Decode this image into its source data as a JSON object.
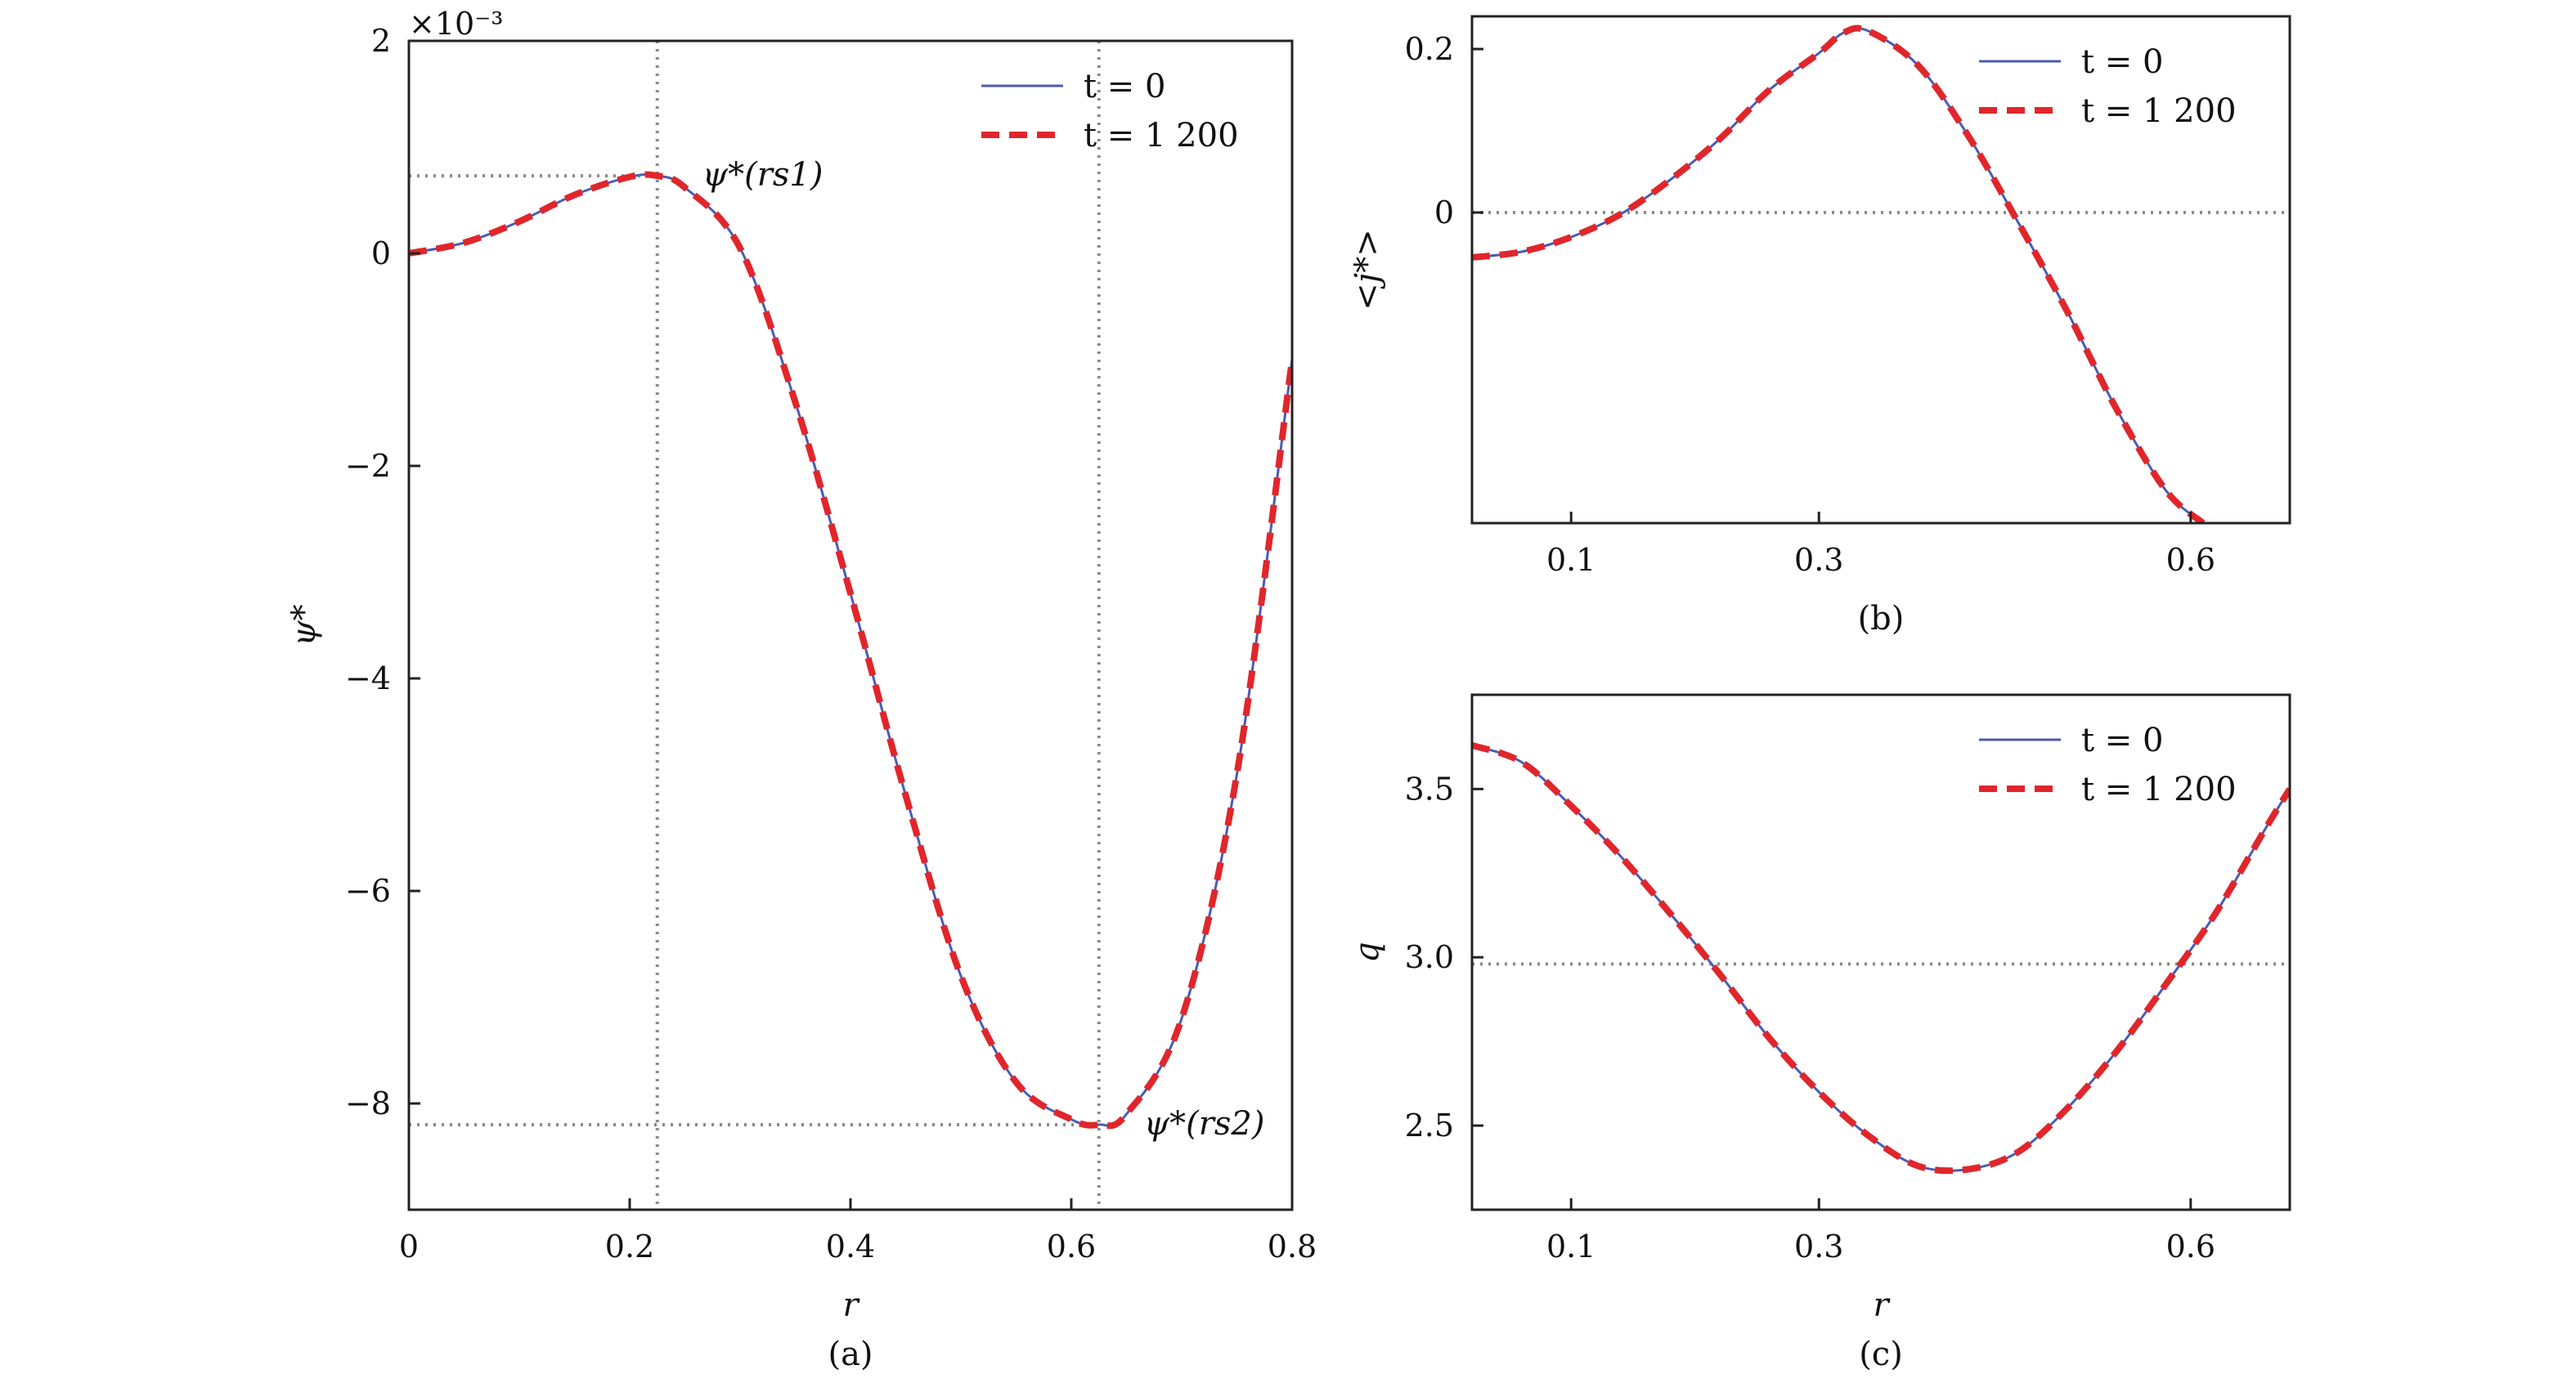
{
  "figure": {
    "panels": [
      "a",
      "b",
      "c"
    ]
  },
  "chart_data": [
    {
      "type": "line",
      "id": "a",
      "panel_label": "(a)",
      "xlabel": "r",
      "ylabel": "ψ*",
      "y_multiplier": "×10⁻³",
      "xlim": [
        0,
        0.8
      ],
      "ylim": [
        -9,
        2
      ],
      "xticks": [
        0,
        0.2,
        0.4,
        0.6,
        0.8
      ],
      "xtick_labels": [
        "0",
        "0.2",
        "0.4",
        "0.6",
        "0.8"
      ],
      "yticks": [
        2,
        0,
        -2,
        -4,
        -6,
        -8
      ],
      "ytick_labels": [
        "2",
        "0",
        "−2",
        "−4",
        "−6",
        "−8"
      ],
      "legend": {
        "placement": "top-right"
      },
      "series": [
        {
          "name": "t = 0",
          "style": "solid",
          "color": "#4b5cb3",
          "x": [
            0,
            0.05,
            0.1,
            0.15,
            0.2,
            0.225,
            0.25,
            0.3,
            0.35,
            0.4,
            0.45,
            0.5,
            0.55,
            0.6,
            0.625,
            0.65,
            0.7,
            0.75,
            0.8
          ],
          "y": [
            0,
            0.1,
            0.3,
            0.55,
            0.72,
            0.73,
            0.62,
            0.05,
            -1.4,
            -3.2,
            -5.1,
            -6.8,
            -7.8,
            -8.15,
            -8.2,
            -8.1,
            -7.2,
            -4.9,
            -1.0
          ]
        },
        {
          "name": "t = 1 200",
          "style": "dashed",
          "color": "#e0262b",
          "x": [
            0,
            0.05,
            0.1,
            0.15,
            0.2,
            0.225,
            0.25,
            0.3,
            0.35,
            0.4,
            0.45,
            0.5,
            0.55,
            0.6,
            0.625,
            0.65,
            0.7,
            0.75,
            0.8
          ],
          "y": [
            0,
            0.1,
            0.3,
            0.55,
            0.72,
            0.73,
            0.62,
            0.05,
            -1.4,
            -3.2,
            -5.1,
            -6.8,
            -7.8,
            -8.15,
            -8.2,
            -8.1,
            -7.2,
            -4.9,
            -1.0
          ]
        }
      ],
      "reference_lines": {
        "vertical_x": [
          0.225,
          0.625
        ],
        "horizontal_y": [
          0.73,
          -8.2
        ]
      },
      "annotations": [
        {
          "text": "ψ*(rs1)",
          "x": 0.225,
          "y": 0.73
        },
        {
          "text": "ψ*(rs2)",
          "x": 0.625,
          "y": -8.2
        }
      ]
    },
    {
      "type": "line",
      "id": "b",
      "panel_label": "(b)",
      "xlabel": "",
      "ylabel": "<j*>",
      "xlim": [
        0.02,
        0.68
      ],
      "ylim": [
        -0.38,
        0.24
      ],
      "xticks": [
        0.1,
        0.3,
        0.6
      ],
      "xtick_labels": [
        "0.1",
        "0.3",
        "0.6"
      ],
      "yticks": [
        0.2,
        0
      ],
      "ytick_labels": [
        "0.2",
        "0"
      ],
      "legend": {
        "placement": "top-right"
      },
      "series": [
        {
          "name": "t = 0",
          "style": "solid",
          "color": "#4b5cb3",
          "x": [
            0.02,
            0.06,
            0.1,
            0.14,
            0.18,
            0.22,
            0.26,
            0.3,
            0.32,
            0.34,
            0.38,
            0.42,
            0.46,
            0.5,
            0.54,
            0.58,
            0.61
          ],
          "y": [
            -0.055,
            -0.048,
            -0.03,
            -0.002,
            0.04,
            0.09,
            0.15,
            0.195,
            0.22,
            0.222,
            0.18,
            0.095,
            -0.01,
            -0.12,
            -0.24,
            -0.34,
            -0.38
          ]
        },
        {
          "name": "t = 1 200",
          "style": "dashed",
          "color": "#e0262b",
          "x": [
            0.02,
            0.06,
            0.1,
            0.14,
            0.18,
            0.22,
            0.26,
            0.3,
            0.32,
            0.34,
            0.38,
            0.42,
            0.46,
            0.5,
            0.54,
            0.58,
            0.61
          ],
          "y": [
            -0.055,
            -0.048,
            -0.03,
            -0.002,
            0.04,
            0.09,
            0.15,
            0.195,
            0.22,
            0.222,
            0.18,
            0.095,
            -0.01,
            -0.12,
            -0.24,
            -0.34,
            -0.38
          ]
        }
      ],
      "reference_lines": {
        "horizontal_y": [
          0
        ]
      }
    },
    {
      "type": "line",
      "id": "c",
      "panel_label": "(c)",
      "xlabel": "r",
      "ylabel": "q",
      "xlim": [
        0.02,
        0.68
      ],
      "ylim": [
        2.25,
        3.78
      ],
      "xticks": [
        0.1,
        0.3,
        0.6
      ],
      "xtick_labels": [
        "0.1",
        "0.3",
        "0.6"
      ],
      "yticks": [
        3.5,
        3.0,
        2.5
      ],
      "ytick_labels": [
        "3.5",
        "3.0",
        "2.5"
      ],
      "legend": {
        "placement": "top-right"
      },
      "series": [
        {
          "name": "t = 0",
          "style": "solid",
          "color": "#4b5cb3",
          "x": [
            0.02,
            0.06,
            0.1,
            0.14,
            0.18,
            0.22,
            0.26,
            0.3,
            0.34,
            0.38,
            0.42,
            0.46,
            0.5,
            0.54,
            0.58,
            0.62,
            0.66,
            0.68
          ],
          "y": [
            3.63,
            3.58,
            3.45,
            3.3,
            3.13,
            2.95,
            2.76,
            2.6,
            2.47,
            2.38,
            2.37,
            2.42,
            2.55,
            2.72,
            2.92,
            3.13,
            3.38,
            3.5
          ]
        },
        {
          "name": "t = 1 200",
          "style": "dashed",
          "color": "#e0262b",
          "x": [
            0.02,
            0.06,
            0.1,
            0.14,
            0.18,
            0.22,
            0.26,
            0.3,
            0.34,
            0.38,
            0.42,
            0.46,
            0.5,
            0.54,
            0.58,
            0.62,
            0.66,
            0.68
          ],
          "y": [
            3.63,
            3.58,
            3.45,
            3.3,
            3.13,
            2.95,
            2.76,
            2.6,
            2.47,
            2.38,
            2.37,
            2.42,
            2.55,
            2.72,
            2.92,
            3.13,
            3.38,
            3.5
          ]
        }
      ],
      "reference_lines": {
        "horizontal_y": [
          2.98
        ]
      }
    }
  ]
}
